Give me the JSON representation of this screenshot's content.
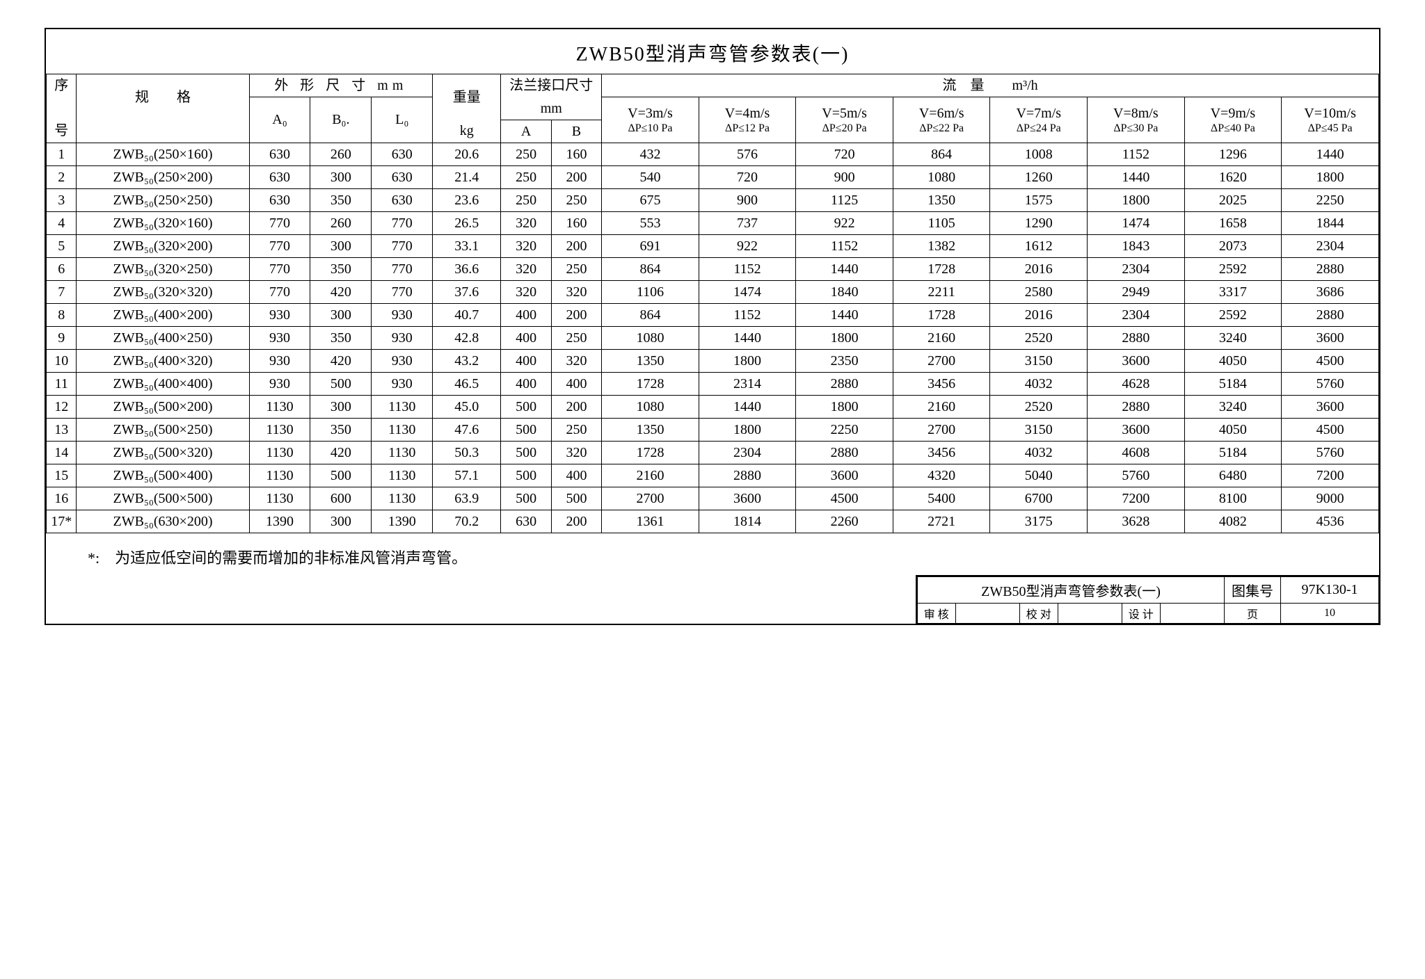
{
  "title": "ZWB50型消声弯管参数表(一)",
  "headers": {
    "seq_top": "序",
    "seq_bot": "号",
    "spec": "规　　格",
    "dims_group": "外 形 尺 寸 mm",
    "A0": "A₀",
    "B0": "B₀.",
    "L0": "L₀",
    "weight_top": "重量",
    "weight_unit": "kg",
    "flange_group_top": "法兰接口尺寸",
    "flange_group_unit": "mm",
    "flange_A": "A",
    "flange_B": "B",
    "flow_group": "流　量　　m³/h",
    "v3_top": "V=3m/s",
    "v3_bot": "ΔP≤10 Pa",
    "v4_top": "V=4m/s",
    "v4_bot": "ΔP≤12 Pa",
    "v5_top": "V=5m/s",
    "v5_bot": "ΔP≤20 Pa",
    "v6_top": "V=6m/s",
    "v6_bot": "ΔP≤22 Pa",
    "v7_top": "V=7m/s",
    "v7_bot": "ΔP≤24 Pa",
    "v8_top": "V=8m/s",
    "v8_bot": "ΔP≤30 Pa",
    "v9_top": "V=9m/s",
    "v9_bot": "ΔP≤40 Pa",
    "v10_top": "V=10m/s",
    "v10_bot": "ΔP≤45 Pa"
  },
  "rows": [
    {
      "n": "1",
      "spec": "ZWB₅₀(250×160)",
      "A0": "630",
      "B0": "260",
      "L0": "630",
      "wt": "20.6",
      "A": "250",
      "B": "160",
      "f": [
        "432",
        "576",
        "720",
        "864",
        "1008",
        "1152",
        "1296",
        "1440"
      ]
    },
    {
      "n": "2",
      "spec": "ZWB₅₀(250×200)",
      "A0": "630",
      "B0": "300",
      "L0": "630",
      "wt": "21.4",
      "A": "250",
      "B": "200",
      "f": [
        "540",
        "720",
        "900",
        "1080",
        "1260",
        "1440",
        "1620",
        "1800"
      ]
    },
    {
      "n": "3",
      "spec": "ZWB₅₀(250×250)",
      "A0": "630",
      "B0": "350",
      "L0": "630",
      "wt": "23.6",
      "A": "250",
      "B": "250",
      "f": [
        "675",
        "900",
        "1125",
        "1350",
        "1575",
        "1800",
        "2025",
        "2250"
      ]
    },
    {
      "n": "4",
      "spec": "ZWB₅₀(320×160)",
      "A0": "770",
      "B0": "260",
      "L0": "770",
      "wt": "26.5",
      "A": "320",
      "B": "160",
      "f": [
        "553",
        "737",
        "922",
        "1105",
        "1290",
        "1474",
        "1658",
        "1844"
      ]
    },
    {
      "n": "5",
      "spec": "ZWB₅₀(320×200)",
      "A0": "770",
      "B0": "300",
      "L0": "770",
      "wt": "33.1",
      "A": "320",
      "B": "200",
      "f": [
        "691",
        "922",
        "1152",
        "1382",
        "1612",
        "1843",
        "2073",
        "2304"
      ]
    },
    {
      "n": "6",
      "spec": "ZWB₅₀(320×250)",
      "A0": "770",
      "B0": "350",
      "L0": "770",
      "wt": "36.6",
      "A": "320",
      "B": "250",
      "f": [
        "864",
        "1152",
        "1440",
        "1728",
        "2016",
        "2304",
        "2592",
        "2880"
      ]
    },
    {
      "n": "7",
      "spec": "ZWB₅₀(320×320)",
      "A0": "770",
      "B0": "420",
      "L0": "770",
      "wt": "37.6",
      "A": "320",
      "B": "320",
      "f": [
        "1106",
        "1474",
        "1840",
        "2211",
        "2580",
        "2949",
        "3317",
        "3686"
      ]
    },
    {
      "n": "8",
      "spec": "ZWB₅₀(400×200)",
      "A0": "930",
      "B0": "300",
      "L0": "930",
      "wt": "40.7",
      "A": "400",
      "B": "200",
      "f": [
        "864",
        "1152",
        "1440",
        "1728",
        "2016",
        "2304",
        "2592",
        "2880"
      ]
    },
    {
      "n": "9",
      "spec": "ZWB₅₀(400×250)",
      "A0": "930",
      "B0": "350",
      "L0": "930",
      "wt": "42.8",
      "A": "400",
      "B": "250",
      "f": [
        "1080",
        "1440",
        "1800",
        "2160",
        "2520",
        "2880",
        "3240",
        "3600"
      ]
    },
    {
      "n": "10",
      "spec": "ZWB₅₀(400×320)",
      "A0": "930",
      "B0": "420",
      "L0": "930",
      "wt": "43.2",
      "A": "400",
      "B": "320",
      "f": [
        "1350",
        "1800",
        "2350",
        "2700",
        "3150",
        "3600",
        "4050",
        "4500"
      ]
    },
    {
      "n": "11",
      "spec": "ZWB₅₀(400×400)",
      "A0": "930",
      "B0": "500",
      "L0": "930",
      "wt": "46.5",
      "A": "400",
      "B": "400",
      "f": [
        "1728",
        "2314",
        "2880",
        "3456",
        "4032",
        "4628",
        "5184",
        "5760"
      ]
    },
    {
      "n": "12",
      "spec": "ZWB₅₀(500×200)",
      "A0": "1130",
      "B0": "300",
      "L0": "1130",
      "wt": "45.0",
      "A": "500",
      "B": "200",
      "f": [
        "1080",
        "1440",
        "1800",
        "2160",
        "2520",
        "2880",
        "3240",
        "3600"
      ]
    },
    {
      "n": "13",
      "spec": "ZWB₅₀(500×250)",
      "A0": "1130",
      "B0": "350",
      "L0": "1130",
      "wt": "47.6",
      "A": "500",
      "B": "250",
      "f": [
        "1350",
        "1800",
        "2250",
        "2700",
        "3150",
        "3600",
        "4050",
        "4500"
      ]
    },
    {
      "n": "14",
      "spec": "ZWB₅₀(500×320)",
      "A0": "1130",
      "B0": "420",
      "L0": "1130",
      "wt": "50.3",
      "A": "500",
      "B": "320",
      "f": [
        "1728",
        "2304",
        "2880",
        "3456",
        "4032",
        "4608",
        "5184",
        "5760"
      ]
    },
    {
      "n": "15",
      "spec": "ZWB₅₀(500×400)",
      "A0": "1130",
      "B0": "500",
      "L0": "1130",
      "wt": "57.1",
      "A": "500",
      "B": "400",
      "f": [
        "2160",
        "2880",
        "3600",
        "4320",
        "5040",
        "5760",
        "6480",
        "7200"
      ]
    },
    {
      "n": "16",
      "spec": "ZWB₅₀(500×500)",
      "A0": "1130",
      "B0": "600",
      "L0": "1130",
      "wt": "63.9",
      "A": "500",
      "B": "500",
      "f": [
        "2700",
        "3600",
        "4500",
        "5400",
        "6700",
        "7200",
        "8100",
        "9000"
      ]
    },
    {
      "n": "17*",
      "spec": "ZWB₅₀(630×200)",
      "A0": "1390",
      "B0": "300",
      "L0": "1390",
      "wt": "70.2",
      "A": "630",
      "B": "200",
      "f": [
        "1361",
        "1814",
        "2260",
        "2721",
        "3175",
        "3628",
        "4082",
        "4536"
      ]
    }
  ],
  "footnote": "*:　为适应低空间的需要而增加的非标准风管消声弯管。",
  "titleblock": {
    "name": "ZWB50型消声弯管参数表(一)",
    "atlas_label": "图集号",
    "atlas_no": "97K130-1",
    "review": "审 核",
    "check": "校 对",
    "design": "设 计",
    "page_label": "页",
    "page_no": "10"
  },
  "style": {
    "border_color": "#000000",
    "background": "#ffffff",
    "font_family": "SimSun",
    "title_fontsize": 28,
    "cell_fontsize": 20,
    "col_widths": {
      "seq": 42,
      "spec": 240,
      "dim": 85,
      "wt": 95,
      "flange": 70,
      "flow": 135
    }
  }
}
